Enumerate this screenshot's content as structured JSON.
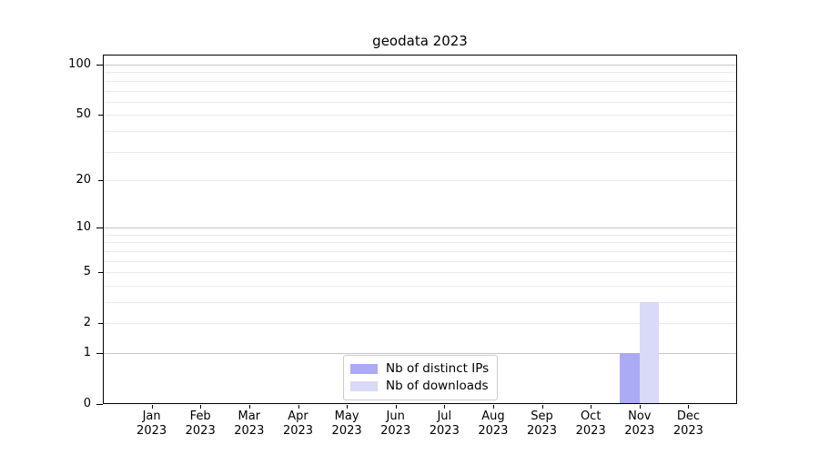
{
  "title": "geodata 2023",
  "chart_data": {
    "type": "bar",
    "title": "geodata 2023",
    "categories": [
      "Jan 2023",
      "Feb 2023",
      "Mar 2023",
      "Apr 2023",
      "May 2023",
      "Jun 2023",
      "Jul 2023",
      "Aug 2023",
      "Sep 2023",
      "Oct 2023",
      "Nov 2023",
      "Dec 2023"
    ],
    "x_tick_line1": [
      "Jan",
      "Feb",
      "Mar",
      "Apr",
      "May",
      "Jun",
      "Jul",
      "Aug",
      "Sep",
      "Oct",
      "Nov",
      "Dec"
    ],
    "x_tick_line2": [
      "2023",
      "2023",
      "2023",
      "2023",
      "2023",
      "2023",
      "2023",
      "2023",
      "2023",
      "2023",
      "2023",
      "2023"
    ],
    "series": [
      {
        "name": "Nb of distinct IPs",
        "color": "#aaaaf5",
        "values": [
          0,
          0,
          0,
          0,
          0,
          0,
          0,
          0,
          0,
          0,
          1,
          0
        ]
      },
      {
        "name": "Nb of downloads",
        "color": "#d9d9f8",
        "values": [
          0,
          0,
          0,
          0,
          0,
          0,
          0,
          0,
          0,
          0,
          3,
          0
        ]
      }
    ],
    "y_axis": {
      "scale": "log10(1+x)",
      "tick_values": [
        0,
        1,
        2,
        5,
        10,
        20,
        50,
        100
      ],
      "tick_labels": [
        "0",
        "1",
        "2",
        "5",
        "10",
        "20",
        "50",
        "100"
      ],
      "major_tick_values": [
        0,
        1,
        10,
        100
      ],
      "major_grid_values": [
        1,
        10,
        100
      ],
      "minor_grid_values": [
        2,
        3,
        4,
        5,
        6,
        7,
        8,
        9,
        20,
        30,
        40,
        50,
        60,
        70,
        80,
        90
      ],
      "ymin": 0
    },
    "legend": {
      "position": "lower center",
      "entries": [
        {
          "label": "Nb of distinct IPs",
          "color": "#aaaaf5"
        },
        {
          "label": "Nb of downloads",
          "color": "#d9d9f8"
        }
      ]
    },
    "style_colors": {
      "major_grid": "#c6c6c6",
      "minor_grid": "#eaeaea",
      "spine": "#000000",
      "background": "#ffffff"
    }
  }
}
